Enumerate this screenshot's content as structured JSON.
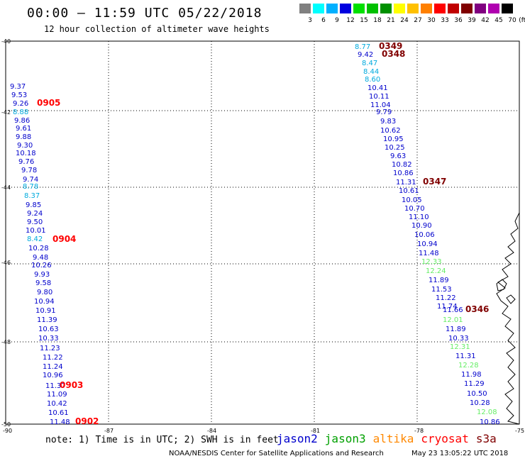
{
  "header": {
    "title": "00:00 – 11:59 UTC 05/22/2018",
    "subtitle": "12 hour collection of altimeter wave heights"
  },
  "scale": {
    "unit": "(ft)",
    "bins": [
      {
        "label": "3",
        "color": "#808080"
      },
      {
        "label": "6",
        "color": "#00ffff"
      },
      {
        "label": "9",
        "color": "#00b0ff"
      },
      {
        "label": "12",
        "color": "#0000e0"
      },
      {
        "label": "15",
        "color": "#00e000"
      },
      {
        "label": "18",
        "color": "#00c000"
      },
      {
        "label": "21",
        "color": "#009000"
      },
      {
        "label": "24",
        "color": "#ffff00"
      },
      {
        "label": "27",
        "color": "#ffc000"
      },
      {
        "label": "30",
        "color": "#ff8000"
      },
      {
        "label": "33",
        "color": "#ff0000"
      },
      {
        "label": "36",
        "color": "#c00000"
      },
      {
        "label": "39",
        "color": "#800000"
      },
      {
        "label": "42",
        "color": "#800080"
      },
      {
        "label": "45",
        "color": "#b000b0"
      },
      {
        "label": "70",
        "color": "#000000"
      }
    ]
  },
  "axes": {
    "lat_labels": [
      "-40",
      "-42",
      "-44",
      "-46",
      "-48",
      "-50"
    ],
    "lon_labels": [
      "-90",
      "-87",
      "-84",
      "-81",
      "-78",
      "-75"
    ]
  },
  "colors": {
    "jason2": "#0000cc",
    "jason3": "#00a000",
    "altika": "#ff8800",
    "cryosat": "#ff0000",
    "s3a": "#800000",
    "light_blue": "#00aadd",
    "light_green": "#66ee66"
  },
  "tracks": [
    {
      "id": "west",
      "times": [
        {
          "label": "0905",
          "color": "#ff0000"
        },
        {
          "label": "0904",
          "color": "#ff0000"
        },
        {
          "label": "0903",
          "color": "#ff0000"
        },
        {
          "label": "0902",
          "color": "#ff0000"
        }
      ],
      "values": [
        {
          "v": "9.37",
          "c": "#0000cc"
        },
        {
          "v": "9.53",
          "c": "#0000cc"
        },
        {
          "v": "9.26",
          "c": "#0000cc"
        },
        {
          "v": "8.88",
          "c": "#00aadd"
        },
        {
          "v": "9.86",
          "c": "#0000cc"
        },
        {
          "v": "9.61",
          "c": "#0000cc"
        },
        {
          "v": "9.88",
          "c": "#0000cc"
        },
        {
          "v": "9.30",
          "c": "#0000cc"
        },
        {
          "v": "10.18",
          "c": "#0000cc"
        },
        {
          "v": "9.76",
          "c": "#0000cc"
        },
        {
          "v": "9.78",
          "c": "#0000cc"
        },
        {
          "v": "9.74",
          "c": "#0000cc"
        },
        {
          "v": "8.78",
          "c": "#00aadd"
        },
        {
          "v": "8.37",
          "c": "#00aadd"
        },
        {
          "v": "9.85",
          "c": "#0000cc"
        },
        {
          "v": "9.24",
          "c": "#0000cc"
        },
        {
          "v": "9.50",
          "c": "#0000cc"
        },
        {
          "v": "10.01",
          "c": "#0000cc"
        },
        {
          "v": "8.42",
          "c": "#00aadd"
        },
        {
          "v": "10.28",
          "c": "#0000cc"
        },
        {
          "v": "9.48",
          "c": "#0000cc"
        },
        {
          "v": "10.26",
          "c": "#0000cc"
        },
        {
          "v": "9.93",
          "c": "#0000cc"
        },
        {
          "v": "9.58",
          "c": "#0000cc"
        },
        {
          "v": "9.80",
          "c": "#0000cc"
        },
        {
          "v": "10.94",
          "c": "#0000cc"
        },
        {
          "v": "10.91",
          "c": "#0000cc"
        },
        {
          "v": "11.39",
          "c": "#0000cc"
        },
        {
          "v": "10.63",
          "c": "#0000cc"
        },
        {
          "v": "10.33",
          "c": "#0000cc"
        },
        {
          "v": "11.23",
          "c": "#0000cc"
        },
        {
          "v": "11.22",
          "c": "#0000cc"
        },
        {
          "v": "11.24",
          "c": "#0000cc"
        },
        {
          "v": "10.96",
          "c": "#0000cc"
        },
        {
          "v": "11.37",
          "c": "#0000cc"
        },
        {
          "v": "11.09",
          "c": "#0000cc"
        },
        {
          "v": "10.42",
          "c": "#0000cc"
        },
        {
          "v": "10.61",
          "c": "#0000cc"
        },
        {
          "v": "11.48",
          "c": "#0000cc"
        }
      ]
    },
    {
      "id": "east",
      "times": [
        {
          "label": "0349",
          "color": "#800000"
        },
        {
          "label": "0348",
          "color": "#800000"
        },
        {
          "label": "0347",
          "color": "#800000"
        },
        {
          "label": "0346",
          "color": "#800000"
        }
      ],
      "values": [
        {
          "v": "8.77",
          "c": "#00aadd"
        },
        {
          "v": "9.42",
          "c": "#0000cc"
        },
        {
          "v": "8.47",
          "c": "#00aadd"
        },
        {
          "v": "8.44",
          "c": "#00aadd"
        },
        {
          "v": "8.60",
          "c": "#00aadd"
        },
        {
          "v": "10.41",
          "c": "#0000cc"
        },
        {
          "v": "10.11",
          "c": "#0000cc"
        },
        {
          "v": "11.04",
          "c": "#0000cc"
        },
        {
          "v": "9.79",
          "c": "#0000cc"
        },
        {
          "v": "9.83",
          "c": "#0000cc"
        },
        {
          "v": "10.62",
          "c": "#0000cc"
        },
        {
          "v": "10.95",
          "c": "#0000cc"
        },
        {
          "v": "10.25",
          "c": "#0000cc"
        },
        {
          "v": "9.63",
          "c": "#0000cc"
        },
        {
          "v": "10.82",
          "c": "#0000cc"
        },
        {
          "v": "10.86",
          "c": "#0000cc"
        },
        {
          "v": "11.31",
          "c": "#0000cc"
        },
        {
          "v": "10.61",
          "c": "#0000cc"
        },
        {
          "v": "10.05",
          "c": "#0000cc"
        },
        {
          "v": "10.70",
          "c": "#0000cc"
        },
        {
          "v": "11.10",
          "c": "#0000cc"
        },
        {
          "v": "10.90",
          "c": "#0000cc"
        },
        {
          "v": "10.06",
          "c": "#0000cc"
        },
        {
          "v": "10.94",
          "c": "#0000cc"
        },
        {
          "v": "11.48",
          "c": "#0000cc"
        },
        {
          "v": "12.33",
          "c": "#66ee66"
        },
        {
          "v": "12.24",
          "c": "#66ee66"
        },
        {
          "v": "11.89",
          "c": "#0000cc"
        },
        {
          "v": "11.53",
          "c": "#0000cc"
        },
        {
          "v": "11.22",
          "c": "#0000cc"
        },
        {
          "v": "11.74",
          "c": "#0000cc"
        },
        {
          "v": "11.66",
          "c": "#0000cc"
        },
        {
          "v": "12.01",
          "c": "#66ee66"
        },
        {
          "v": "11.89",
          "c": "#0000cc"
        },
        {
          "v": "10.33",
          "c": "#0000cc"
        },
        {
          "v": "12.31",
          "c": "#66ee66"
        },
        {
          "v": "11.31",
          "c": "#0000cc"
        },
        {
          "v": "12.28",
          "c": "#66ee66"
        },
        {
          "v": "11.98",
          "c": "#0000cc"
        },
        {
          "v": "11.29",
          "c": "#0000cc"
        },
        {
          "v": "10.50",
          "c": "#0000cc"
        },
        {
          "v": "10.28",
          "c": "#0000cc"
        },
        {
          "v": "12.08",
          "c": "#66ee66"
        },
        {
          "v": "10.86",
          "c": "#0000cc"
        }
      ]
    }
  ],
  "note": "note: 1) Time is in UTC; 2) SWH is in feet",
  "legend": [
    {
      "label": "jason2",
      "color": "#0000cc"
    },
    {
      "label": "jason3",
      "color": "#00a000"
    },
    {
      "label": "altika",
      "color": "#ff8800"
    },
    {
      "label": "cryosat",
      "color": "#ff0000"
    },
    {
      "label": "s3a",
      "color": "#800000"
    }
  ],
  "footer": {
    "credit": "NOAA/NESDIS Center for Satellite Applications and Research",
    "generated": "May 23 13:05:22 UTC 2018"
  }
}
